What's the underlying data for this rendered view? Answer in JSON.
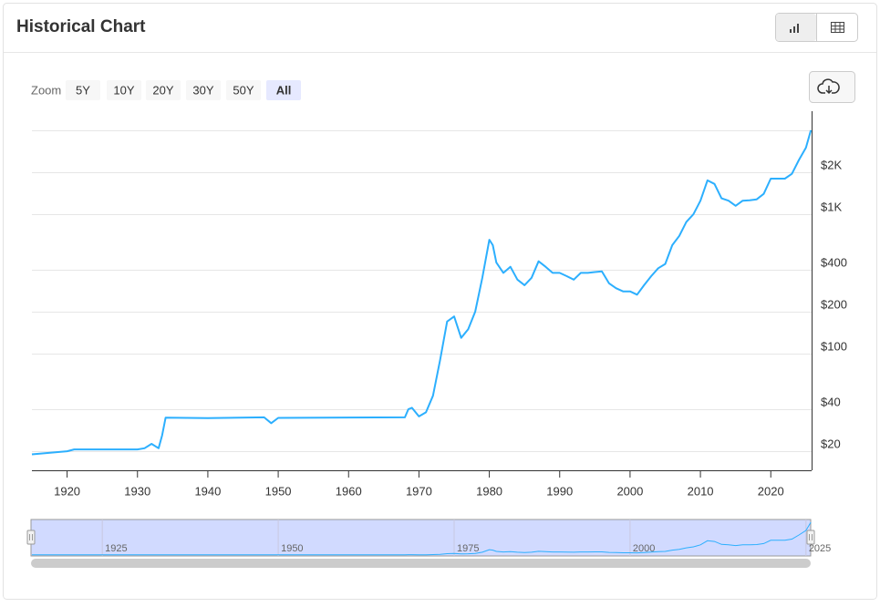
{
  "chart_data": {
    "type": "line",
    "title": "Historical Chart",
    "zoom_label": "Zoom",
    "zoom_buttons": [
      "5Y",
      "10Y",
      "20Y",
      "30Y",
      "50Y",
      "All"
    ],
    "active_zoom": 5,
    "color": "#2caffe",
    "log_scale": true,
    "grid": true,
    "x": [
      1915,
      1920,
      1921,
      1930,
      1931,
      1932,
      1933,
      1933.5,
      1934,
      1940,
      1948,
      1949,
      1950,
      1968,
      1968.5,
      1969,
      1970,
      1971,
      1972,
      1973,
      1974,
      1975,
      1976,
      1977,
      1978,
      1979,
      1980,
      1980.5,
      1981,
      1982,
      1983,
      1984,
      1985,
      1986,
      1987,
      1988,
      1989,
      1990,
      1991,
      1992,
      1993,
      1994,
      1995,
      1996,
      1997,
      1998,
      1999,
      2000,
      2001,
      2002,
      2003,
      2004,
      2005,
      2006,
      2007,
      2008,
      2009,
      2010,
      2011,
      2012,
      2013,
      2014,
      2015,
      2016,
      2017,
      2018,
      2019,
      2020,
      2021,
      2022,
      2023,
      2024,
      2025,
      2025.7
    ],
    "values": [
      19,
      20,
      20.6,
      20.6,
      21,
      22.6,
      21,
      26,
      34.8,
      34.5,
      35,
      31.8,
      34.7,
      35,
      40,
      41,
      35.5,
      38,
      50,
      90,
      170,
      185,
      130,
      150,
      200,
      350,
      656,
      600,
      450,
      380,
      420,
      340,
      310,
      350,
      460,
      420,
      380,
      380,
      360,
      340,
      380,
      380,
      385,
      390,
      320,
      295,
      280,
      280,
      265,
      310,
      360,
      410,
      440,
      600,
      700,
      880,
      1000,
      1250,
      1750,
      1650,
      1300,
      1250,
      1150,
      1250,
      1260,
      1280,
      1400,
      1800,
      1800,
      1800,
      1950,
      2450,
      3000,
      4000
    ],
    "xlim": [
      1915,
      2025.8
    ],
    "xticks": [
      1920,
      1930,
      1940,
      1950,
      1960,
      1970,
      1980,
      1990,
      2000,
      2010,
      2020
    ],
    "ylim": [
      14.6,
      5480
    ],
    "yticks": [
      {
        "value": 20,
        "label": "$20"
      },
      {
        "value": 40,
        "label": "$40"
      },
      {
        "value": 100,
        "label": "$100"
      },
      {
        "value": 200,
        "label": "$200"
      },
      {
        "value": 400,
        "label": "$400"
      },
      {
        "value": 1000,
        "label": "$1K"
      },
      {
        "value": 2000,
        "label": "$2K"
      }
    ],
    "ygrid": [
      20,
      40,
      100,
      200,
      400,
      1000,
      2000,
      4000
    ],
    "navigator_xticks": [
      1925,
      1950,
      1975,
      2000,
      2025
    ]
  }
}
